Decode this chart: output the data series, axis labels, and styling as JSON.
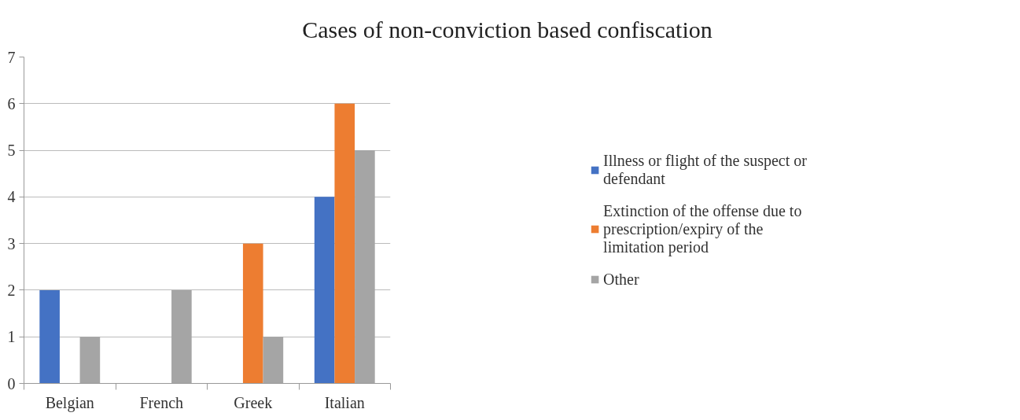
{
  "chart_data": {
    "type": "bar",
    "title": "Cases of non-conviction based confiscation",
    "categories": [
      "Belgian",
      "French",
      "Greek",
      "Italian"
    ],
    "series": [
      {
        "name": "Illness or flight of the suspect or defendant",
        "color": "#4472c4",
        "values": [
          2,
          0,
          0,
          4
        ]
      },
      {
        "name": "Extinction of the offense due to prescription/expiry of the limitation period",
        "color": "#ed7d31",
        "values": [
          0,
          0,
          3,
          6
        ]
      },
      {
        "name": "Other",
        "color": "#a5a5a5",
        "values": [
          1,
          2,
          1,
          5
        ]
      }
    ],
    "ylim": [
      0,
      7
    ],
    "yticks": [
      0,
      1,
      2,
      3,
      4,
      5,
      6,
      7
    ],
    "grid": "y",
    "legend": "right"
  }
}
